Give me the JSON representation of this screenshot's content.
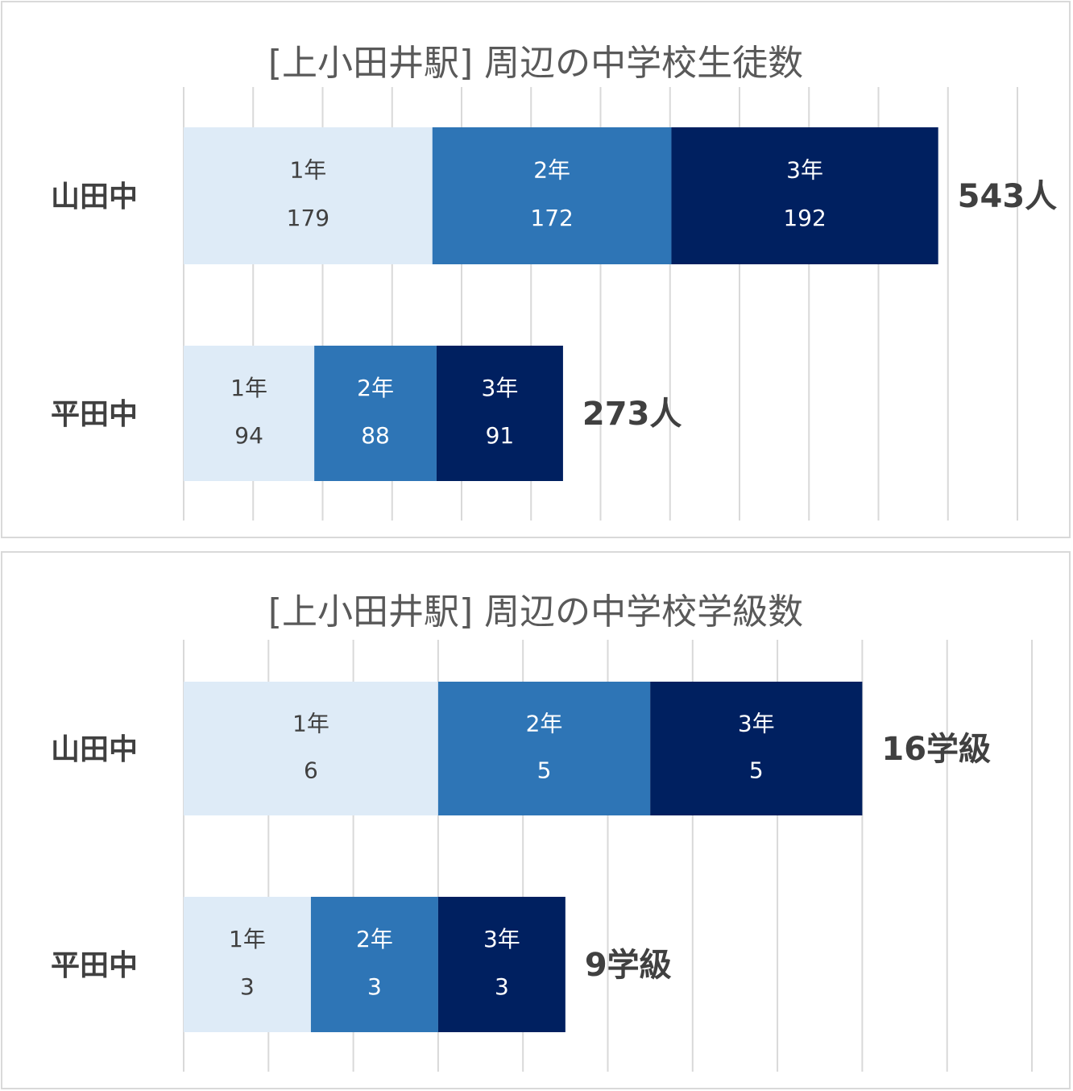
{
  "colors": {
    "grade1": "#deebf7",
    "grade2": "#2e75b6",
    "grade3": "#002060",
    "grade1_text": "#404040",
    "grade2_text": "#ffffff",
    "grade3_text": "#ffffff",
    "grid": "#d9d9d9",
    "border": "#d9d9d9"
  },
  "chart_data": [
    {
      "type": "bar",
      "orientation": "horizontal",
      "stacked": true,
      "title": "[上小田井駅] 周辺の中学校生徒数",
      "categories": [
        "山田中",
        "平田中"
      ],
      "series": [
        {
          "name": "1年",
          "values": [
            179,
            94
          ]
        },
        {
          "name": "2年",
          "values": [
            172,
            88
          ]
        },
        {
          "name": "3年",
          "values": [
            192,
            91
          ]
        }
      ],
      "totals": [
        "543人",
        "273人"
      ],
      "xlim": [
        0,
        600
      ],
      "grid": true,
      "legend": "none"
    },
    {
      "type": "bar",
      "orientation": "horizontal",
      "stacked": true,
      "title": "[上小田井駅] 周辺の中学校学級数",
      "categories": [
        "山田中",
        "平田中"
      ],
      "series": [
        {
          "name": "1年",
          "values": [
            6,
            3
          ]
        },
        {
          "name": "2年",
          "values": [
            5,
            3
          ]
        },
        {
          "name": "3年",
          "values": [
            5,
            3
          ]
        }
      ],
      "totals": [
        "16学級",
        "9学級"
      ],
      "xlim": [
        0,
        20
      ],
      "grid": true,
      "legend": "none"
    }
  ]
}
